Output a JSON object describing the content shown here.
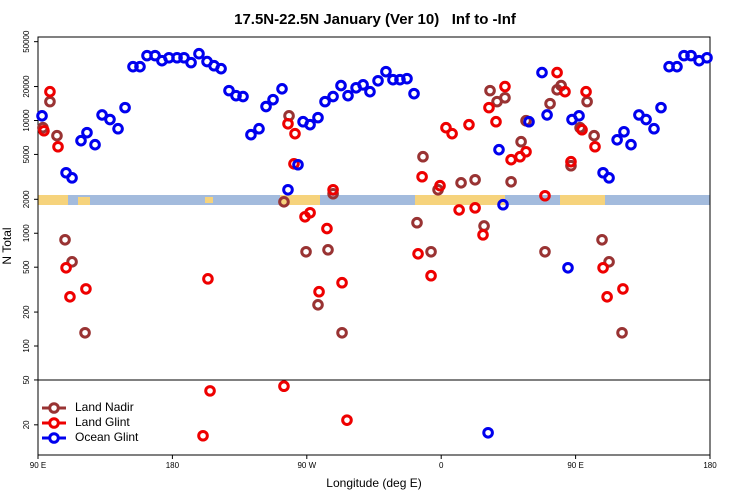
{
  "chart_data": {
    "type": "scatter",
    "title": "17.5N-22.5N January (Ver 10)   Inf to -Inf",
    "xlabel": "Longitude (deg E)",
    "ylabel": "N Total",
    "log_y": true,
    "legend": "lower left",
    "xlim": [
      -270,
      180
    ],
    "xticks": [
      {
        "value": -270,
        "label": "90 E"
      },
      {
        "value": -180,
        "label": "180"
      },
      {
        "value": -90,
        "label": "90 W"
      },
      0,
      {
        "value": 90,
        "label": "90 E"
      },
      180
    ],
    "ylim": [
      10.8,
      55000
    ],
    "yticks": [
      20,
      50,
      100,
      200,
      500,
      1000,
      2000,
      5000,
      10000,
      20000,
      50000
    ],
    "series": [
      {
        "name": "Land Nadir",
        "color": "#993333",
        "x": [
          -266.7,
          -262.0,
          -257.3,
          -251.9,
          -247.2,
          -238.5,
          -105.3,
          -101.9,
          -90.5,
          -82.5,
          -75.8,
          -66.4,
          -72.4,
          -16.2,
          -12.2,
          -6.8,
          -2.1,
          13.3,
          22.7,
          28.7,
          32.7,
          37.4,
          42.7,
          46.8,
          53.5,
          56.8,
          69.5,
          72.9,
          77.6,
          80.3,
          86.9,
          93.0,
          97.7,
          102.4,
          107.7,
          112.4,
          121.1
        ],
        "values": [
          8630,
          14700,
          7330,
          875,
          558,
          131,
          1900,
          11000,
          685,
          232,
          713,
          131,
          2240,
          1240,
          4770,
          685,
          2430,
          2800,
          2980,
          1160,
          18400,
          14700,
          15900,
          2860,
          6480,
          9950,
          685,
          14100,
          18700,
          20400,
          3970,
          8630,
          14700,
          7330,
          875,
          558,
          131
        ]
      },
      {
        "name": "Land Glint",
        "color": "#ee0000",
        "x": [
          -266.0,
          -262.0,
          -256.6,
          -251.2,
          -248.6,
          -237.9,
          -159.5,
          -156.2,
          -154.8,
          -105.3,
          -102.6,
          -97.9,
          -98.6,
          -91.2,
          -87.8,
          -76.5,
          -81.8,
          -72.4,
          -66.4,
          -63.1,
          -15.5,
          -12.8,
          -6.8,
          -0.8,
          3.2,
          7.3,
          12.0,
          18.6,
          22.7,
          28.0,
          32.0,
          36.7,
          42.7,
          46.8,
          52.8,
          56.8,
          69.5,
          77.6,
          82.9,
          86.9,
          94.3,
          97.0,
          103.0,
          108.4,
          111.1,
          121.7
        ],
        "values": [
          8110,
          18000,
          5850,
          494,
          273,
          321,
          16,
          394,
          40,
          44,
          9350,
          7640,
          4130,
          1400,
          1520,
          1100,
          303,
          2430,
          364,
          22,
          657,
          3170,
          420,
          2640,
          8630,
          7640,
          1610,
          9180,
          1680,
          968,
          13000,
          9750,
          20000,
          4490,
          4770,
          5280,
          2150,
          26600,
          18000,
          4310,
          8280,
          18000,
          5850,
          494,
          273,
          321
        ]
      },
      {
        "name": "Ocean Glint",
        "color": "#0000ee",
        "x": [
          -267.3,
          -251.2,
          -247.2,
          -241.2,
          -237.2,
          -231.8,
          -227.1,
          -221.8,
          -216.4,
          -211.7,
          -206.4,
          -201.7,
          -197.0,
          -191.6,
          -187.0,
          -182.3,
          -176.9,
          -172.2,
          -167.5,
          -162.2,
          -156.8,
          -152.1,
          -147.4,
          -142.1,
          -137.4,
          -132.7,
          -127.4,
          -122.0,
          -117.3,
          -112.6,
          -106.6,
          -102.6,
          -95.9,
          -92.5,
          -87.8,
          -82.5,
          -77.8,
          -72.4,
          -67.1,
          -62.4,
          -57.0,
          -52.3,
          -47.7,
          -42.3,
          -37.0,
          -32.3,
          -27.6,
          -22.9,
          -18.2,
          31.4,
          38.7,
          41.4,
          58.8,
          67.5,
          70.9,
          84.9,
          87.6,
          92.3,
          108.4,
          112.4,
          117.8,
          122.4,
          127.1,
          132.4,
          137.2,
          142.5,
          147.2,
          152.6,
          157.9,
          162.6,
          167.3,
          172.7,
          178.0
        ],
        "values": [
          11000,
          3440,
          3100,
          6620,
          7800,
          6100,
          11200,
          10200,
          8450,
          13000,
          30000,
          30000,
          37600,
          37600,
          33900,
          36000,
          36000,
          36000,
          32600,
          39100,
          33300,
          30600,
          28800,
          18400,
          16600,
          16300,
          7480,
          8450,
          13300,
          15300,
          19100,
          2430,
          4050,
          9750,
          9180,
          10600,
          14700,
          16300,
          20400,
          16600,
          19500,
          20700,
          18000,
          22500,
          27100,
          23000,
          23000,
          23500,
          17300,
          17,
          5510,
          1790,
          9750,
          26600,
          11200,
          494,
          10200,
          11000,
          3440,
          3100,
          6740,
          7940,
          6100,
          11200,
          10200,
          8450,
          13000,
          30000,
          30000,
          37600,
          37600,
          33900,
          36000
        ]
      }
    ]
  }
}
